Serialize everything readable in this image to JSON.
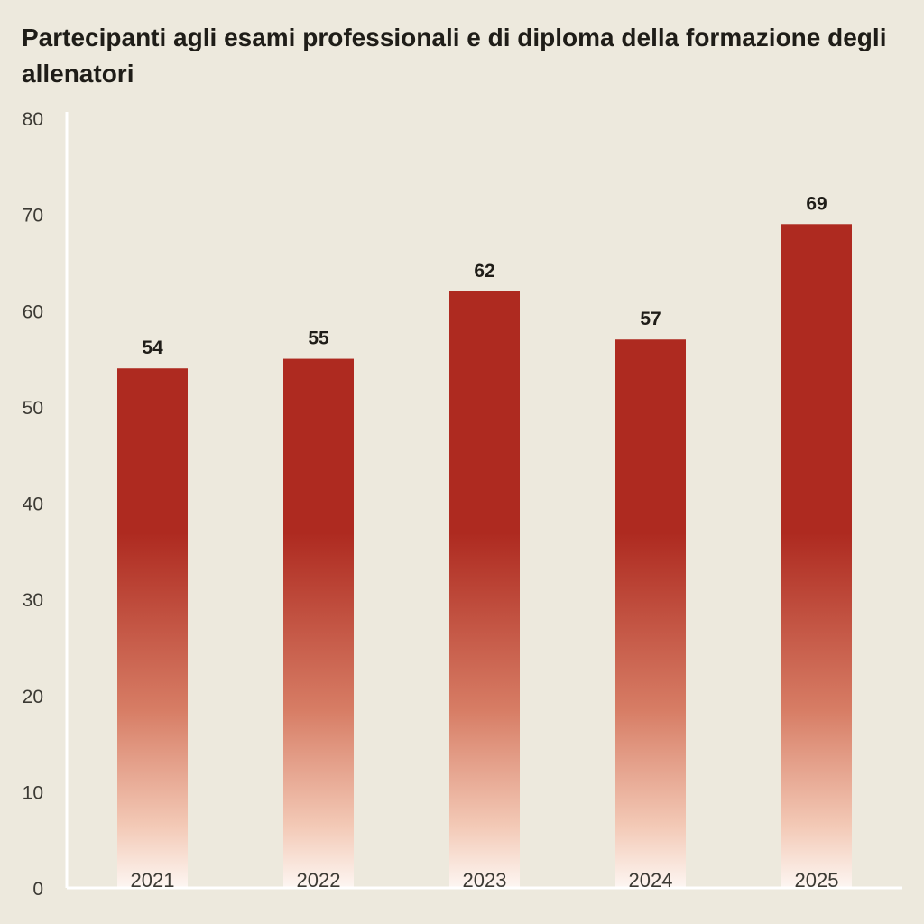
{
  "chart_data": {
    "type": "bar",
    "title": "Partecipanti agli esami professionali e di diploma della formazione degli allenatori",
    "categories": [
      "2021",
      "2022",
      "2023",
      "2024",
      "2025"
    ],
    "values": [
      54,
      55,
      62,
      57,
      69
    ],
    "ylim": [
      0,
      80
    ],
    "yticks": [
      0,
      10,
      20,
      30,
      40,
      50,
      60,
      70,
      80
    ],
    "xlabel": "",
    "ylabel": "",
    "grid": false,
    "data_labels": true,
    "colors": {
      "bar": "#ae2a20",
      "bar_fade": "#fdf3ee",
      "axis": "#ffffff",
      "background": "#ede9dd"
    }
  }
}
